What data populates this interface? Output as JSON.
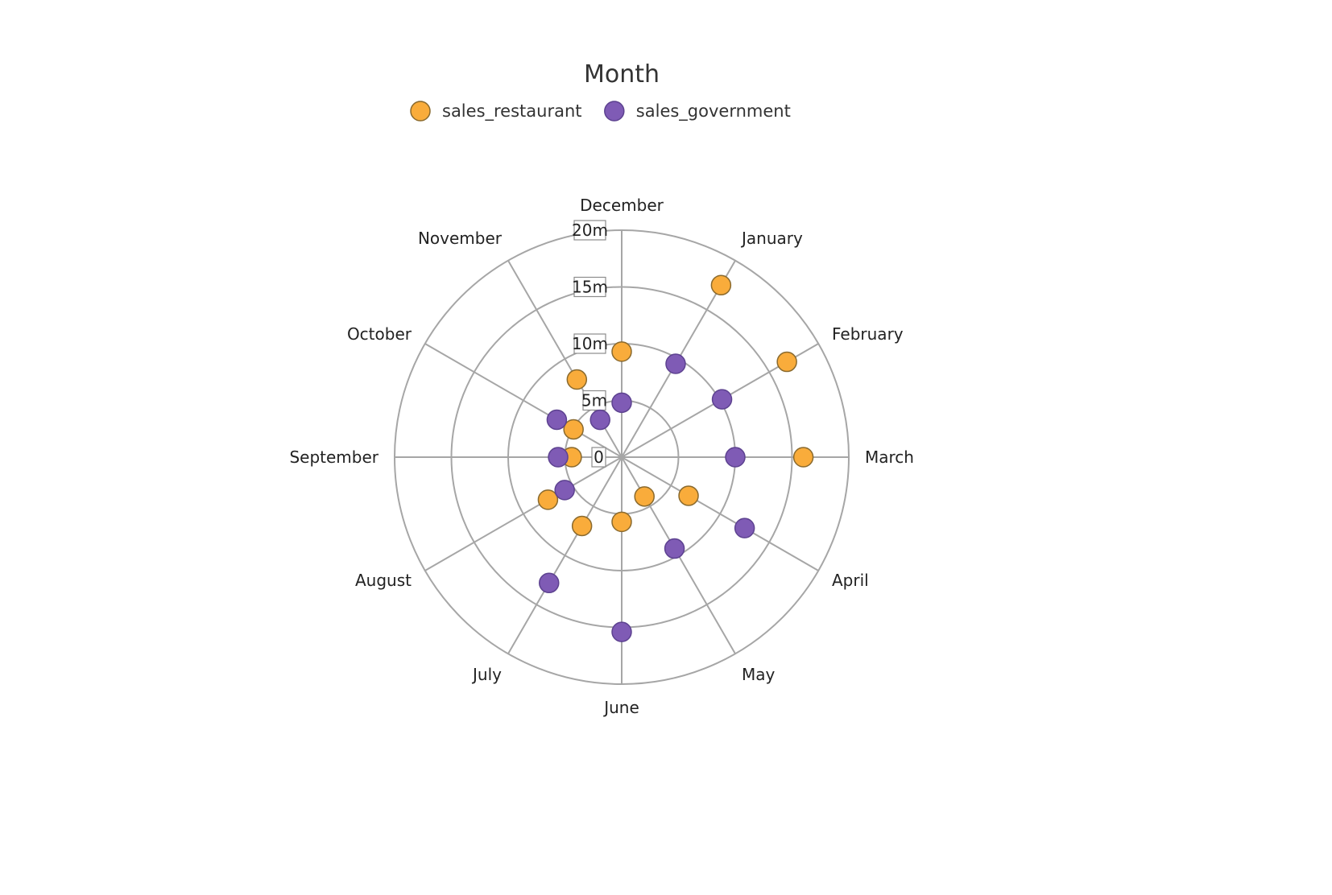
{
  "chart_data": {
    "type": "scatter",
    "subtype": "polar",
    "title": "Month",
    "categories": [
      "December",
      "January",
      "February",
      "March",
      "April",
      "May",
      "June",
      "July",
      "August",
      "September",
      "October",
      "November"
    ],
    "series": [
      {
        "name": "sales_restaurant",
        "color": "#f9ac3b",
        "stroke": "#8a6a2e",
        "values": [
          9.3,
          17.5,
          16.8,
          16.0,
          6.8,
          4.0,
          5.7,
          7.0,
          7.5,
          4.4,
          4.9,
          7.9
        ]
      },
      {
        "name": "sales_government",
        "color": "#7f5bb5",
        "stroke": "#5d4290",
        "values": [
          4.8,
          9.5,
          10.2,
          10.0,
          12.5,
          9.3,
          15.4,
          12.8,
          5.8,
          5.6,
          6.6,
          3.8
        ]
      }
    ],
    "radial_axis": {
      "ticks": [
        "0",
        "5m",
        "10m",
        "15m",
        "20m"
      ],
      "tick_values": [
        0,
        5,
        10,
        15,
        20
      ],
      "max": 20
    },
    "start_category": "December",
    "direction": "clockwise",
    "legend_position": "top-center",
    "grid": true
  }
}
